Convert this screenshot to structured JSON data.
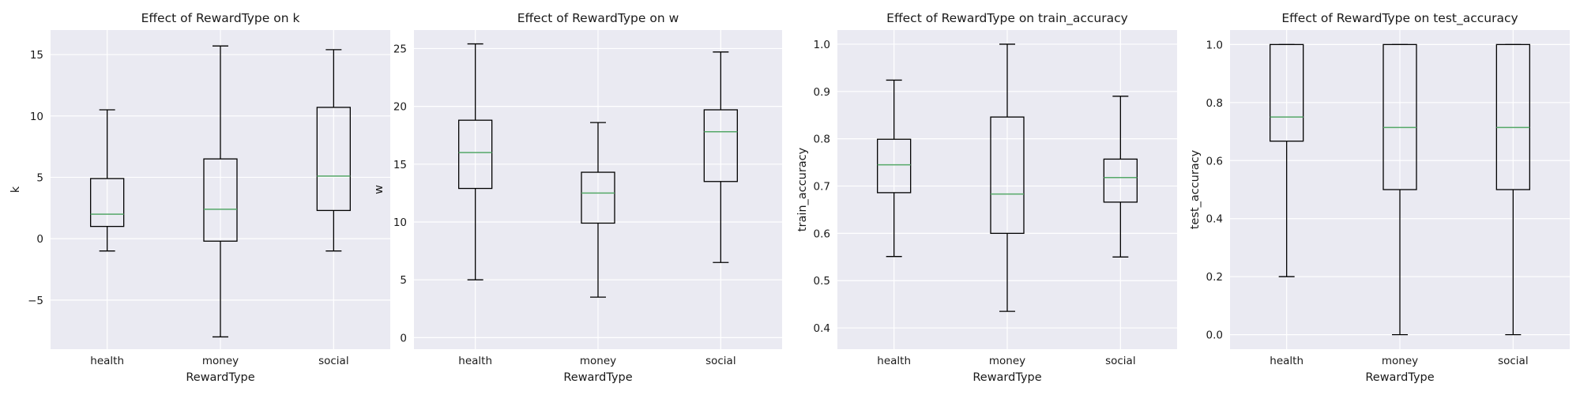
{
  "chart_data": [
    {
      "type": "box",
      "title": "Effect of RewardType on k",
      "xlabel": "RewardType",
      "ylabel": "k",
      "ylim": [
        -9,
        17
      ],
      "yticks": [
        -5,
        0,
        5,
        10,
        15
      ],
      "grid": true,
      "categories": [
        "health",
        "money",
        "social"
      ],
      "boxes": [
        {
          "category": "health",
          "whislo": -1.0,
          "q1": 1.0,
          "med": 2.0,
          "q3": 4.9,
          "whishi": 10.5
        },
        {
          "category": "money",
          "whislo": -8.0,
          "q1": -0.2,
          "med": 2.4,
          "q3": 6.5,
          "whishi": 15.7
        },
        {
          "category": "social",
          "whislo": -1.0,
          "q1": 2.3,
          "med": 5.1,
          "q3": 10.7,
          "whishi": 15.4
        }
      ]
    },
    {
      "type": "box",
      "title": "Effect of RewardType on w",
      "xlabel": "RewardType",
      "ylabel": "w",
      "ylim": [
        -1.0,
        26.6
      ],
      "yticks": [
        0,
        5,
        10,
        15,
        20,
        25
      ],
      "grid": true,
      "categories": [
        "health",
        "money",
        "social"
      ],
      "boxes": [
        {
          "category": "health",
          "whislo": 5.0,
          "q1": 12.9,
          "med": 16.0,
          "q3": 18.8,
          "whishi": 25.4
        },
        {
          "category": "money",
          "whislo": 3.5,
          "q1": 9.9,
          "med": 12.5,
          "q3": 14.3,
          "whishi": 18.6
        },
        {
          "category": "social",
          "whislo": 6.5,
          "q1": 13.5,
          "med": 17.8,
          "q3": 19.7,
          "whishi": 24.7
        }
      ]
    },
    {
      "type": "box",
      "title": "Effect of RewardType on train_accuracy",
      "xlabel": "RewardType",
      "ylabel": "train_accuracy",
      "ylim": [
        0.355,
        1.03
      ],
      "yticks": [
        0.4,
        0.5,
        0.6,
        0.7,
        0.8,
        0.9,
        1.0
      ],
      "yticklabels": [
        "0.4",
        "0.5",
        "0.6",
        "0.7",
        "0.8",
        "0.9",
        "1.0"
      ],
      "grid": true,
      "categories": [
        "health",
        "money",
        "social"
      ],
      "boxes": [
        {
          "category": "health",
          "whislo": 0.551,
          "q1": 0.686,
          "med": 0.745,
          "q3": 0.799,
          "whishi": 0.924
        },
        {
          "category": "money",
          "whislo": 0.435,
          "q1": 0.6,
          "med": 0.683,
          "q3": 0.846,
          "whishi": 1.0
        },
        {
          "category": "social",
          "whislo": 0.55,
          "q1": 0.666,
          "med": 0.718,
          "q3": 0.757,
          "whishi": 0.89
        }
      ]
    },
    {
      "type": "box",
      "title": "Effect of RewardType on test_accuracy",
      "xlabel": "RewardType",
      "ylabel": "test_accuracy",
      "ylim": [
        -0.05,
        1.05
      ],
      "yticks": [
        0.0,
        0.2,
        0.4,
        0.6,
        0.8,
        1.0
      ],
      "yticklabels": [
        "0.0",
        "0.2",
        "0.4",
        "0.6",
        "0.8",
        "1.0"
      ],
      "grid": true,
      "categories": [
        "health",
        "money",
        "social"
      ],
      "boxes": [
        {
          "category": "health",
          "whislo": 0.2,
          "q1": 0.667,
          "med": 0.75,
          "q3": 1.0,
          "whishi": 1.0
        },
        {
          "category": "money",
          "whislo": 0.0,
          "q1": 0.5,
          "med": 0.714,
          "q3": 1.0,
          "whishi": 1.0
        },
        {
          "category": "social",
          "whislo": 0.0,
          "q1": 0.5,
          "med": 0.714,
          "q3": 1.0,
          "whishi": 1.0
        }
      ]
    }
  ],
  "colors": {
    "panel_background": "#eaeaf2",
    "gridlines": "#ffffff",
    "box_outline": "#000000",
    "median_line": "#55a868"
  }
}
